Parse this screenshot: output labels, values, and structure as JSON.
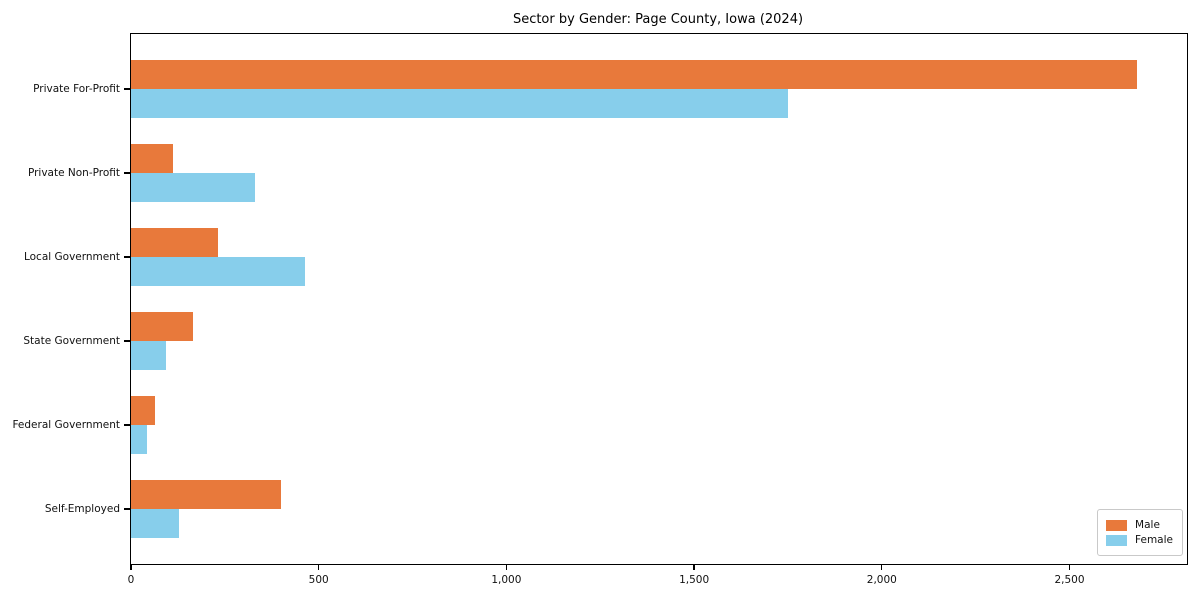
{
  "title": "Sector by Gender: Page County, Iowa (2024)",
  "chart_data": {
    "type": "bar",
    "orientation": "horizontal",
    "title": "Sector by Gender: Page County, Iowa (2024)",
    "categories": [
      "Private For-Profit",
      "Private Non-Profit",
      "Local Government",
      "State Government",
      "Federal Government",
      "Self-Employed"
    ],
    "series": [
      {
        "name": "Male",
        "color": "#e8793b",
        "values": [
          2679,
          113,
          231,
          165,
          65,
          399
        ]
      },
      {
        "name": "Female",
        "color": "#87ceeb",
        "values": [
          1751,
          329,
          463,
          93,
          43,
          127
        ]
      }
    ],
    "xlim": [
      0,
      2813
    ],
    "x_ticks": [
      0,
      500,
      1000,
      1500,
      2000,
      2500
    ],
    "x_tick_labels": [
      "0",
      "500",
      "1,000",
      "1,500",
      "2,000",
      "2,500"
    ],
    "xlabel": "",
    "ylabel": "",
    "grid": false,
    "legend_position": "lower right",
    "colors": {
      "axis": "#000000",
      "text": "#111111",
      "legend_border": "#c9c9c9",
      "background": "#ffffff"
    }
  }
}
